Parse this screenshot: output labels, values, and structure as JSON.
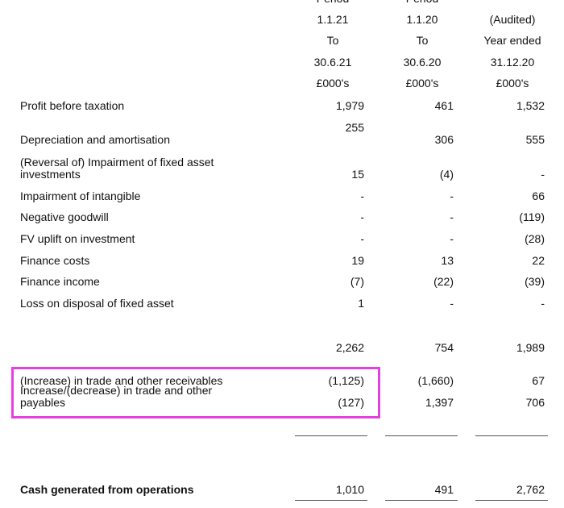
{
  "header": {
    "columns": [
      {
        "lines": [
          "Period",
          "1.1.21",
          "To",
          "30.6.21",
          "£000's"
        ]
      },
      {
        "lines": [
          "Period",
          "1.1.20",
          "To",
          "30.6.20",
          "£000's"
        ]
      },
      {
        "lines": [
          "(Audited)",
          "Year ended",
          "31.12.20",
          "£000's"
        ]
      }
    ]
  },
  "rows": [
    {
      "label": "Profit before taxation",
      "values": [
        "1,979",
        "461",
        "1,532"
      ]
    },
    {
      "label": "Depreciation and amortisation",
      "values": [
        "255",
        "306",
        "555"
      ]
    },
    {
      "label": "(Reversal of) Impairment of fixed asset investments",
      "values": [
        "15",
        "(4)",
        "-"
      ]
    },
    {
      "label": "Impairment of intangible",
      "values": [
        "-",
        "-",
        "66"
      ]
    },
    {
      "label": "Negative goodwill",
      "values": [
        "-",
        "-",
        "(119)"
      ]
    },
    {
      "label": "FV uplift on investment",
      "values": [
        "-",
        "-",
        "(28)"
      ]
    },
    {
      "label": "Finance costs",
      "values": [
        "19",
        "13",
        "22"
      ]
    },
    {
      "label": "Finance income",
      "values": [
        "(7)",
        "(22)",
        "(39)"
      ]
    },
    {
      "label": "Loss on disposal of fixed asset",
      "values": [
        "1",
        "-",
        "-"
      ]
    },
    {
      "label": null,
      "values": [
        "2,262",
        "754",
        "1,989"
      ]
    },
    {
      "label": "(Increase) in trade and other receivables",
      "values": [
        "(1,125)",
        "(1,660)",
        "67"
      ]
    },
    {
      "label": "Increase/(decrease) in trade and other payables",
      "values": [
        "(127)",
        "1,397",
        "706"
      ]
    },
    {
      "label": "Cash generated from operations",
      "values": [
        "1,010",
        "491",
        "2,762"
      ]
    }
  ]
}
